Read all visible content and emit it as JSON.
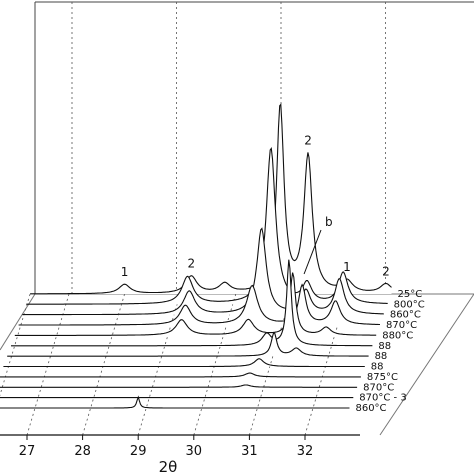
{
  "chart_data": {
    "type": "line",
    "subtype": "waterfall-3d",
    "xlabel": "2θ",
    "x_ticks": [
      27,
      28,
      29,
      30,
      31,
      32
    ],
    "xlim": [
      26.3,
      32.8
    ],
    "grid": "vertical dashed",
    "traces": [
      {
        "label": "25°C",
        "peaks": [
          [
            28.0,
            0.12,
            0.12
          ],
          [
            29.2,
            0.22,
            0.12
          ],
          [
            29.8,
            0.12,
            0.12
          ],
          [
            30.8,
            2.4,
            0.08
          ],
          [
            31.3,
            1.75,
            0.09
          ],
          [
            32.0,
            0.15,
            0.12
          ],
          [
            32.7,
            0.12,
            0.12
          ]
        ]
      },
      {
        "label": "800°C",
        "peaks": [
          [
            29.2,
            0.35,
            0.12
          ],
          [
            30.7,
            2.0,
            0.1
          ],
          [
            31.35,
            0.25,
            0.1
          ],
          [
            32.0,
            0.4,
            0.1
          ]
        ]
      },
      {
        "label": "860°C",
        "peaks": [
          [
            29.3,
            0.3,
            0.12
          ],
          [
            30.6,
            1.1,
            0.1
          ],
          [
            31.4,
            0.3,
            0.1
          ],
          [
            32.0,
            0.45,
            0.1
          ]
        ]
      },
      {
        "label": "870°C",
        "peaks": [
          [
            29.3,
            0.25,
            0.12
          ],
          [
            30.5,
            0.5,
            0.12
          ],
          [
            31.4,
            0.5,
            0.08
          ],
          [
            32.0,
            0.3,
            0.1
          ]
        ]
      },
      {
        "label": "880°C",
        "peaks": [
          [
            29.3,
            0.2,
            0.12
          ],
          [
            30.5,
            0.2,
            0.12
          ],
          [
            31.3,
            0.8,
            0.06
          ],
          [
            31.9,
            0.1,
            0.1
          ]
        ]
      },
      {
        "label": "88",
        "peaks": [
          [
            30.9,
            0.15,
            0.1
          ],
          [
            31.3,
            1.1,
            0.05
          ]
        ]
      },
      {
        "label": "88",
        "peaks": [
          [
            31.1,
            0.3,
            0.06
          ],
          [
            31.5,
            0.1,
            0.1
          ]
        ]
      },
      {
        "label": "88",
        "peaks": [
          [
            30.9,
            0.1,
            0.1
          ]
        ]
      },
      {
        "label": "875°C",
        "peaks": [
          [
            30.8,
            0.05,
            0.1
          ]
        ]
      },
      {
        "label": "870°C",
        "peaks": [
          [
            30.8,
            0.03,
            0.1
          ]
        ]
      },
      {
        "label": "870°C - 3",
        "peaks": []
      },
      {
        "label": "860°C",
        "peaks": [
          [
            29.0,
            0.14,
            0.03
          ]
        ]
      }
    ],
    "annotations": [
      {
        "text": "1",
        "x": 28.0,
        "trace": 0
      },
      {
        "text": "2",
        "x": 29.2,
        "trace": 0
      },
      {
        "text": "2",
        "x": 31.3,
        "trace": 0
      },
      {
        "text": "1",
        "x": 32.0,
        "trace": 0
      },
      {
        "text": "2",
        "x": 32.7,
        "trace": 0
      },
      {
        "text": "b",
        "x": 31.3,
        "trace": 0
      }
    ]
  }
}
